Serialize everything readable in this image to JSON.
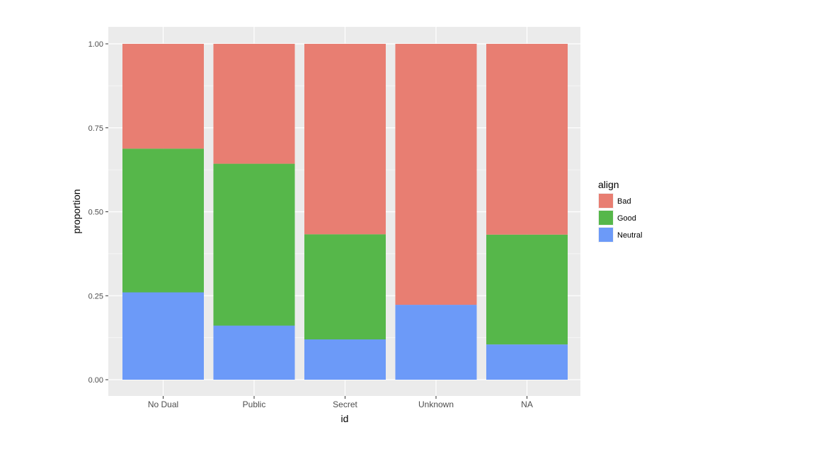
{
  "chart_data": {
    "type": "bar",
    "stacked": true,
    "title": "",
    "xlabel": "id",
    "ylabel": "proportion",
    "ylim": [
      0,
      1
    ],
    "yticks": [
      0,
      0.25,
      0.5,
      0.75,
      1
    ],
    "ytick_labels": [
      "0.00",
      "0.25",
      "0.50",
      "0.75",
      "1.00"
    ],
    "grid": true,
    "legend_title": "align",
    "legend_position": "right",
    "categories": [
      "No Dual",
      "Public",
      "Secret",
      "Unknown",
      "NA"
    ],
    "series": [
      {
        "name": "Bad",
        "color": "#E87E72",
        "values": [
          0.312,
          0.357,
          0.567,
          0.777,
          0.568
        ]
      },
      {
        "name": "Good",
        "color": "#56B74A",
        "values": [
          0.428,
          0.482,
          0.313,
          0.0,
          0.327
        ]
      },
      {
        "name": "Neutral",
        "color": "#6C9AF8",
        "values": [
          0.26,
          0.161,
          0.12,
          0.223,
          0.105
        ]
      }
    ]
  }
}
